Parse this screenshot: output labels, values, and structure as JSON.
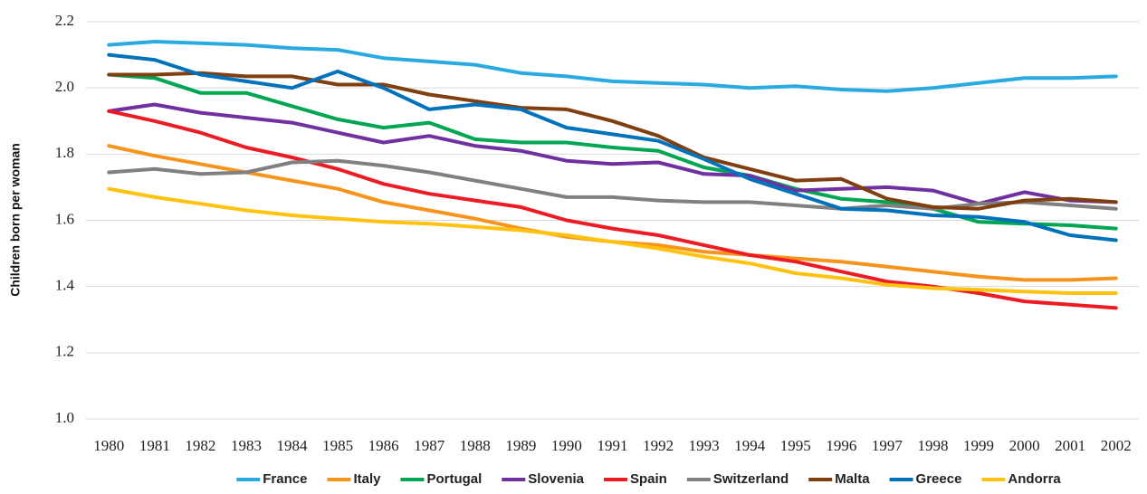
{
  "chart_data": {
    "type": "line",
    "y_label": "Children born per woman",
    "categories": [
      "1980",
      "1981",
      "1982",
      "1983",
      "1984",
      "1985",
      "1986",
      "1987",
      "1988",
      "1989",
      "1990",
      "1991",
      "1992",
      "1993",
      "1994",
      "1995",
      "1996",
      "1997",
      "1998",
      "1999",
      "2000",
      "2001",
      "2002"
    ],
    "ylim": [
      1.0,
      2.2
    ],
    "yticks": [
      {
        "value": 1.0,
        "label": "1.0"
      },
      1.2,
      1.4,
      1.6,
      1.8,
      {
        "value": 2.0,
        "label": "2.0"
      },
      2.2
    ],
    "grid": true,
    "legend": "bottom",
    "series": [
      {
        "name": "France",
        "color": "#29abe2",
        "values": [
          2.13,
          2.14,
          2.135,
          2.13,
          2.12,
          2.115,
          2.09,
          2.08,
          2.07,
          2.045,
          2.035,
          2.02,
          2.015,
          2.01,
          2.0,
          2.005,
          1.995,
          1.99,
          2.0,
          2.015,
          2.03,
          2.03,
          2.035
        ]
      },
      {
        "name": "Italy",
        "color": "#f7941d",
        "values": [
          1.825,
          1.795,
          1.77,
          1.745,
          1.72,
          1.695,
          1.655,
          1.63,
          1.605,
          1.575,
          1.55,
          1.535,
          1.525,
          1.505,
          1.495,
          1.485,
          1.475,
          1.46,
          1.445,
          1.43,
          1.42,
          1.42,
          1.425
        ]
      },
      {
        "name": "Portugal",
        "color": "#00a651",
        "values": [
          2.04,
          2.03,
          1.985,
          1.985,
          1.945,
          1.905,
          1.88,
          1.895,
          1.845,
          1.835,
          1.835,
          1.82,
          1.81,
          1.76,
          1.735,
          1.695,
          1.665,
          1.655,
          1.635,
          1.595,
          1.59,
          1.585,
          1.575
        ]
      },
      {
        "name": "Slovenia",
        "color": "#7030a0",
        "values": [
          1.93,
          1.95,
          1.925,
          1.91,
          1.895,
          1.865,
          1.835,
          1.855,
          1.825,
          1.81,
          1.78,
          1.77,
          1.775,
          1.74,
          1.735,
          1.69,
          1.695,
          1.7,
          1.69,
          1.65,
          1.685,
          1.66,
          1.655
        ]
      },
      {
        "name": "Spain",
        "color": "#ed1c24",
        "values": [
          1.93,
          1.9,
          1.865,
          1.82,
          1.79,
          1.755,
          1.71,
          1.68,
          1.66,
          1.64,
          1.6,
          1.575,
          1.555,
          1.525,
          1.495,
          1.475,
          1.445,
          1.415,
          1.4,
          1.38,
          1.355,
          1.345,
          1.335
        ]
      },
      {
        "name": "Switzerland",
        "color": "#808080",
        "values": [
          1.745,
          1.755,
          1.74,
          1.745,
          1.775,
          1.78,
          1.765,
          1.745,
          1.72,
          1.695,
          1.67,
          1.67,
          1.66,
          1.655,
          1.655,
          1.645,
          1.635,
          1.645,
          1.635,
          1.65,
          1.655,
          1.645,
          1.635
        ]
      },
      {
        "name": "Malta",
        "color": "#7f3f10",
        "values": [
          2.04,
          2.04,
          2.045,
          2.035,
          2.035,
          2.01,
          2.01,
          1.98,
          1.96,
          1.94,
          1.935,
          1.9,
          1.855,
          1.79,
          1.755,
          1.72,
          1.725,
          1.665,
          1.64,
          1.635,
          1.66,
          1.665,
          1.655
        ]
      },
      {
        "name": "Greece",
        "color": "#0072bc",
        "values": [
          2.1,
          2.085,
          2.04,
          2.02,
          2.0,
          2.05,
          2.0,
          1.935,
          1.95,
          1.935,
          1.88,
          1.86,
          1.84,
          1.785,
          1.725,
          1.68,
          1.635,
          1.63,
          1.615,
          1.61,
          1.595,
          1.555,
          1.54
        ]
      },
      {
        "name": "Andorra",
        "color": "#ffc20e",
        "values": [
          1.695,
          1.67,
          1.65,
          1.63,
          1.615,
          1.605,
          1.595,
          1.59,
          1.58,
          1.57,
          1.555,
          1.535,
          1.515,
          1.49,
          1.47,
          1.44,
          1.425,
          1.405,
          1.395,
          1.39,
          1.385,
          1.38,
          1.38
        ]
      }
    ]
  }
}
